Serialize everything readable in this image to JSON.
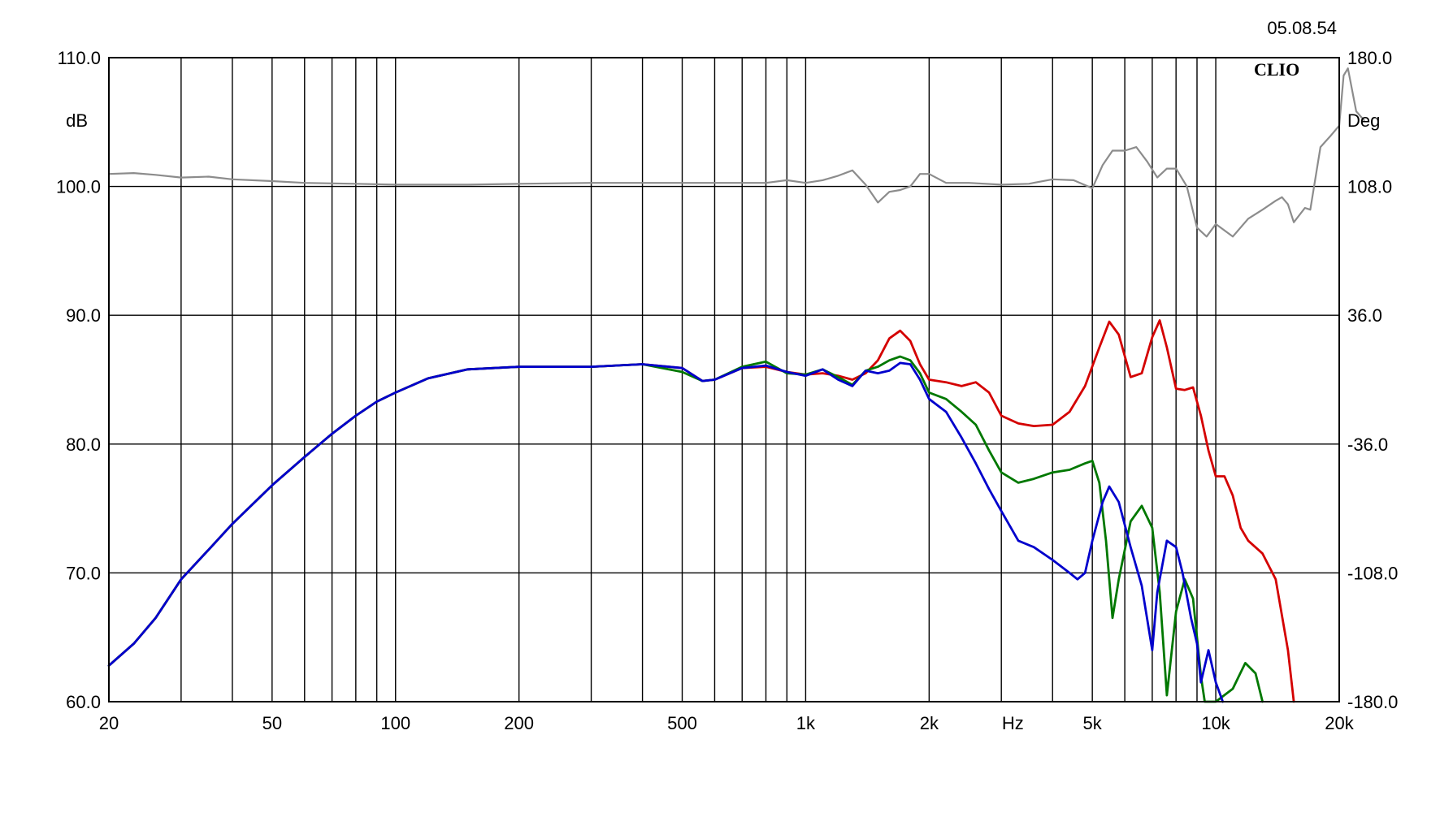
{
  "timestamp": "05.08.54",
  "brand": "CLIO",
  "colors": {
    "background": "#ffffff",
    "grid": "#000000",
    "red": "#d40000",
    "green": "#007800",
    "blue": "#0000cc",
    "phase": "#8c8c8c"
  },
  "chart_data": {
    "type": "line",
    "xscale": "log",
    "xlim": [
      20,
      20000
    ],
    "ylim": [
      60,
      110
    ],
    "y2lim": [
      -180,
      180
    ],
    "grid": true,
    "xlabel": "Hz",
    "ylabel": "dB",
    "y2label": "Deg",
    "x_ticks": [
      {
        "value": 20,
        "label": "20"
      },
      {
        "value": 50,
        "label": "50"
      },
      {
        "value": 100,
        "label": "100"
      },
      {
        "value": 200,
        "label": "200"
      },
      {
        "value": 500,
        "label": "500"
      },
      {
        "value": 1000,
        "label": "1k"
      },
      {
        "value": 2000,
        "label": "2k"
      },
      {
        "value": 5000,
        "label": "5k"
      },
      {
        "value": 10000,
        "label": "10k"
      },
      {
        "value": 20000,
        "label": "20k"
      }
    ],
    "x_unit_label": {
      "value": 3200,
      "label": "Hz"
    },
    "x_gridlines": [
      30,
      40,
      50,
      60,
      70,
      80,
      90,
      100,
      200,
      300,
      400,
      500,
      600,
      700,
      800,
      900,
      1000,
      2000,
      3000,
      4000,
      5000,
      6000,
      7000,
      8000,
      9000,
      10000,
      20000
    ],
    "y_ticks": [
      {
        "value": 110,
        "label": "110.0"
      },
      {
        "value": 100,
        "label": "100.0"
      },
      {
        "value": 90,
        "label": "90.0"
      },
      {
        "value": 80,
        "label": "80.0"
      },
      {
        "value": 70,
        "label": "70.0"
      },
      {
        "value": 60,
        "label": "60.0"
      }
    ],
    "y2_ticks": [
      {
        "value": 180,
        "label": "180.0"
      },
      {
        "value": 108,
        "label": "108.0"
      },
      {
        "value": 36,
        "label": "36.0"
      },
      {
        "value": -36,
        "label": "-36.0"
      },
      {
        "value": -108,
        "label": "-108.0"
      },
      {
        "value": -180,
        "label": "-180.0"
      }
    ],
    "series": [
      {
        "color": "#d40000",
        "axis": "left",
        "x": [
          20,
          23,
          26,
          30,
          35,
          40,
          50,
          60,
          70,
          80,
          90,
          100,
          120,
          150,
          200,
          300,
          400,
          500,
          560,
          600,
          700,
          800,
          900,
          1000,
          1100,
          1200,
          1300,
          1400,
          1500,
          1600,
          1700,
          1800,
          1900,
          2000,
          2200,
          2400,
          2600,
          2800,
          3000,
          3300,
          3600,
          4000,
          4400,
          4800,
          5200,
          5500,
          5800,
          6200,
          6600,
          7000,
          7300,
          7600,
          8000,
          8400,
          8800,
          9200,
          9600,
          10000,
          10500,
          11000,
          11500,
          12000,
          13000,
          14000,
          15000,
          15500
        ],
        "y": [
          62.8,
          64.5,
          66.5,
          69.5,
          71.8,
          73.8,
          76.8,
          79.0,
          80.8,
          82.2,
          83.3,
          84.0,
          85.1,
          85.8,
          86.0,
          86.0,
          86.2,
          85.9,
          84.9,
          85.0,
          85.9,
          86.0,
          85.6,
          85.4,
          85.5,
          85.3,
          85.0,
          85.5,
          86.5,
          88.2,
          88.8,
          88.0,
          86.2,
          85.0,
          84.8,
          84.5,
          84.8,
          84.0,
          82.2,
          81.6,
          81.4,
          81.5,
          82.5,
          84.5,
          87.5,
          89.5,
          88.5,
          85.2,
          85.5,
          88.3,
          89.6,
          87.5,
          84.3,
          84.2,
          84.4,
          82.2,
          79.5,
          77.5,
          77.5,
          76.0,
          73.5,
          72.5,
          71.5,
          69.5,
          64.0,
          60.0
        ]
      },
      {
        "color": "#007800",
        "axis": "left",
        "x": [
          20,
          23,
          26,
          30,
          35,
          40,
          50,
          60,
          70,
          80,
          90,
          100,
          120,
          150,
          200,
          300,
          400,
          500,
          560,
          600,
          700,
          800,
          900,
          1000,
          1100,
          1200,
          1300,
          1400,
          1500,
          1600,
          1700,
          1800,
          1900,
          2000,
          2200,
          2400,
          2600,
          2800,
          3000,
          3300,
          3600,
          4000,
          4400,
          4800,
          5000,
          5200,
          5400,
          5600,
          5800,
          6200,
          6600,
          7000,
          7300,
          7600,
          8000,
          8400,
          8800,
          9200,
          9400,
          10000,
          11000,
          11800,
          12500,
          13000
        ],
        "y": [
          62.8,
          64.5,
          66.5,
          69.5,
          71.8,
          73.8,
          76.8,
          79.0,
          80.8,
          82.2,
          83.3,
          84.0,
          85.1,
          85.8,
          86.0,
          86.0,
          86.2,
          85.6,
          84.9,
          85.0,
          86.0,
          86.4,
          85.5,
          85.4,
          85.8,
          85.2,
          84.6,
          85.7,
          86.0,
          86.5,
          86.8,
          86.5,
          85.5,
          84.0,
          83.5,
          82.5,
          81.5,
          79.5,
          77.8,
          77.0,
          77.3,
          77.8,
          78.0,
          78.5,
          78.7,
          77.0,
          72.5,
          66.5,
          69.5,
          74.0,
          75.2,
          73.5,
          68.5,
          60.5,
          67.0,
          69.5,
          68.0,
          62.0,
          60.0,
          60.0,
          61.0,
          63.0,
          62.2,
          60.0
        ]
      },
      {
        "color": "#0000cc",
        "axis": "left",
        "x": [
          20,
          23,
          26,
          30,
          35,
          40,
          50,
          60,
          70,
          80,
          90,
          100,
          120,
          150,
          200,
          300,
          400,
          500,
          560,
          600,
          700,
          800,
          900,
          1000,
          1100,
          1200,
          1300,
          1400,
          1500,
          1600,
          1700,
          1800,
          1900,
          2000,
          2200,
          2400,
          2600,
          2800,
          3000,
          3300,
          3600,
          4000,
          4400,
          4600,
          4800,
          5000,
          5300,
          5500,
          5800,
          6200,
          6600,
          7000,
          7200,
          7600,
          8000,
          8300,
          8700,
          9000,
          9200,
          9600,
          10000,
          10400
        ],
        "y": [
          62.8,
          64.5,
          66.5,
          69.5,
          71.8,
          73.8,
          76.8,
          79.0,
          80.8,
          82.2,
          83.3,
          84.0,
          85.1,
          85.8,
          86.0,
          86.0,
          86.2,
          85.9,
          84.9,
          85.0,
          85.9,
          86.1,
          85.6,
          85.3,
          85.8,
          85.0,
          84.5,
          85.7,
          85.5,
          85.7,
          86.3,
          86.2,
          85.0,
          83.5,
          82.5,
          80.5,
          78.5,
          76.5,
          74.8,
          72.5,
          72.0,
          71.0,
          70.0,
          69.5,
          70.0,
          72.5,
          75.5,
          76.7,
          75.5,
          72.0,
          69.0,
          64.0,
          68.5,
          72.5,
          72.0,
          70.0,
          66.5,
          64.5,
          61.5,
          64.0,
          61.5,
          60.0
        ]
      },
      {
        "color": "#8c8c8c",
        "axis": "right",
        "x": [
          20,
          23,
          26,
          30,
          35,
          40,
          50,
          60,
          80,
          100,
          150,
          200,
          300,
          500,
          700,
          800,
          900,
          1000,
          1100,
          1200,
          1300,
          1400,
          1500,
          1600,
          1700,
          1800,
          1900,
          2000,
          2200,
          2500,
          3000,
          3500,
          4000,
          4500,
          5000,
          5300,
          5600,
          6000,
          6400,
          6800,
          7200,
          7600,
          8000,
          8500,
          9000,
          9500,
          10000,
          11000,
          12000,
          13000,
          14000,
          14500,
          15000,
          15500,
          16500,
          17000,
          18000,
          19000,
          20000,
          20500,
          21000,
          22000,
          23000
        ],
        "y": [
          115.0,
          115.5,
          114.5,
          113.0,
          113.5,
          112.0,
          111.0,
          110.0,
          109.5,
          109.0,
          109.0,
          109.5,
          110.0,
          110.0,
          110.0,
          110.0,
          111.5,
          110.0,
          111.5,
          114.0,
          117.0,
          109.0,
          99.0,
          105.0,
          106.0,
          108.0,
          115.0,
          115.0,
          110.0,
          110.0,
          109.0,
          109.5,
          112.0,
          111.5,
          107.0,
          120.0,
          128.0,
          128.0,
          130.0,
          122.0,
          113.0,
          118.0,
          118.0,
          108.0,
          85.0,
          80.0,
          87.0,
          80.0,
          90.0,
          95.0,
          100.0,
          102.0,
          98.0,
          88.0,
          96.0,
          95.0,
          130.0,
          136.0,
          142.0,
          170.0,
          174.0,
          150.0,
          145.0
        ]
      }
    ]
  }
}
